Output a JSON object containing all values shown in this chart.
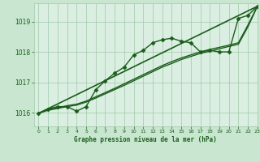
{
  "title": "Graphe pression niveau de la mer (hPa)",
  "background_color": "#c8e6d0",
  "plot_bg_color": "#daeee2",
  "grid_color": "#a0c8a8",
  "line_color": "#1a5c1a",
  "marker_color": "#1a5c1a",
  "xlim": [
    -0.5,
    23
  ],
  "ylim": [
    1015.55,
    1019.6
  ],
  "yticks": [
    1016,
    1017,
    1018,
    1019
  ],
  "xticks": [
    0,
    1,
    2,
    3,
    4,
    5,
    6,
    7,
    8,
    9,
    10,
    11,
    12,
    13,
    14,
    15,
    16,
    17,
    18,
    19,
    20,
    21,
    22,
    23
  ],
  "series": [
    {
      "x": [
        0,
        23
      ],
      "y": [
        1015.98,
        1019.5
      ],
      "marker": null,
      "markersize": 0,
      "linewidth": 1.2
    },
    {
      "x": [
        0,
        1,
        2,
        3,
        4,
        5,
        6,
        7,
        8,
        9,
        10,
        11,
        12,
        13,
        14,
        15,
        16,
        17,
        18,
        19,
        20,
        21,
        22,
        23
      ],
      "y": [
        1015.98,
        1016.12,
        1016.2,
        1016.2,
        1016.05,
        1016.2,
        1016.75,
        1017.05,
        1017.3,
        1017.5,
        1017.9,
        1018.05,
        1018.3,
        1018.4,
        1018.45,
        1018.35,
        1018.3,
        1018.0,
        1018.05,
        1018.0,
        1018.0,
        1019.1,
        1019.2,
        1019.5
      ],
      "marker": "D",
      "markersize": 2.5,
      "linewidth": 1.0
    },
    {
      "x": [
        0,
        1,
        2,
        3,
        4,
        5,
        6,
        7,
        8,
        9,
        10,
        11,
        12,
        13,
        14,
        15,
        16,
        17,
        18,
        19,
        20,
        21,
        22,
        23
      ],
      "y": [
        1015.98,
        1016.08,
        1016.14,
        1016.2,
        1016.25,
        1016.35,
        1016.48,
        1016.62,
        1016.76,
        1016.9,
        1017.05,
        1017.2,
        1017.35,
        1017.5,
        1017.62,
        1017.75,
        1017.85,
        1017.95,
        1018.02,
        1018.1,
        1018.18,
        1018.25,
        1018.82,
        1019.5
      ],
      "marker": null,
      "markersize": 0,
      "linewidth": 1.0
    },
    {
      "x": [
        0,
        1,
        2,
        3,
        4,
        5,
        6,
        7,
        8,
        9,
        10,
        11,
        12,
        13,
        14,
        15,
        16,
        17,
        18,
        19,
        20,
        21,
        22,
        23
      ],
      "y": [
        1015.98,
        1016.1,
        1016.16,
        1016.23,
        1016.28,
        1016.38,
        1016.52,
        1016.66,
        1016.8,
        1016.95,
        1017.1,
        1017.25,
        1017.4,
        1017.55,
        1017.68,
        1017.8,
        1017.9,
        1018.0,
        1018.08,
        1018.15,
        1018.22,
        1018.3,
        1018.88,
        1019.5
      ],
      "marker": null,
      "markersize": 0,
      "linewidth": 1.0
    },
    {
      "x": [
        0,
        1,
        2,
        3,
        4,
        5,
        6,
        7,
        8,
        9,
        10,
        11,
        12,
        13,
        14,
        15,
        16,
        17,
        18,
        19,
        20,
        21,
        22,
        23
      ],
      "y": [
        1015.98,
        1016.12,
        1016.2,
        1016.2,
        1016.05,
        1016.2,
        1016.75,
        1017.05,
        1017.3,
        1017.5,
        1017.9,
        1018.05,
        1018.3,
        1018.4,
        1018.45,
        1018.35,
        1018.3,
        1018.0,
        1018.05,
        1018.0,
        1018.0,
        1019.1,
        1019.2,
        1019.5
      ],
      "marker": null,
      "markersize": 0,
      "linewidth": 0
    }
  ]
}
